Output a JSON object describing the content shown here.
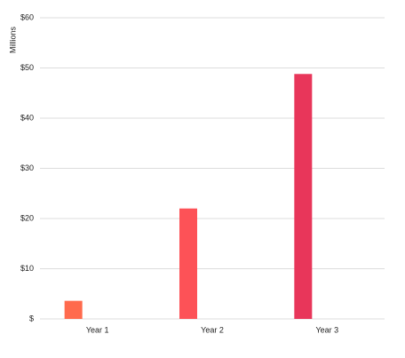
{
  "chart_data": {
    "type": "bar",
    "y_label": "Millions",
    "categories": [
      "Year 1",
      "Year 2",
      "Year 3"
    ],
    "values": [
      3.6,
      22,
      48.8
    ],
    "colors": [
      "#ff6a4d",
      "#fd5257",
      "#e8365a"
    ],
    "ylim": [
      0,
      60
    ],
    "yticks": [
      {
        "value": 0,
        "label": "$"
      },
      {
        "value": 10,
        "label": "$10"
      },
      {
        "value": 20,
        "label": "$20"
      },
      {
        "value": 30,
        "label": "$30"
      },
      {
        "value": 40,
        "label": "$40"
      },
      {
        "value": 50,
        "label": "$50"
      },
      {
        "value": 60,
        "label": "$60"
      }
    ],
    "grid": true
  }
}
